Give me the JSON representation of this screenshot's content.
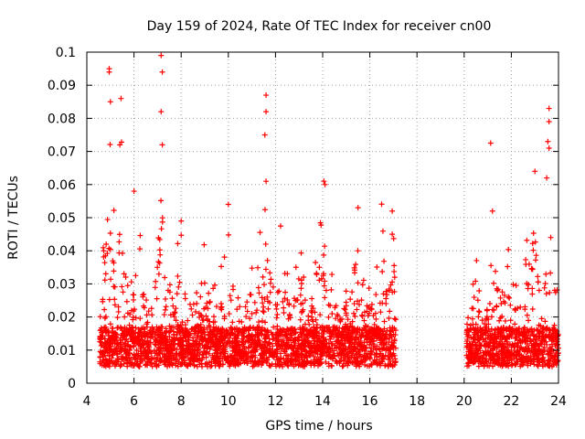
{
  "chart_data": {
    "type": "scatter",
    "title": "Day 159 of 2024, Rate Of TEC Index for receiver cn00",
    "xlabel": "GPS time / hours",
    "ylabel": "ROTI / TECUs",
    "xlim": [
      4,
      24
    ],
    "ylim": [
      0,
      0.1
    ],
    "grid": true,
    "marker": "+",
    "color": "#ff0000",
    "x_ticks": [
      4,
      6,
      8,
      10,
      12,
      14,
      16,
      18,
      20,
      22,
      24
    ],
    "x_tick_labels": [
      "4",
      "6",
      "8",
      "10",
      "12",
      "14",
      "16",
      "18",
      "20",
      "22",
      "24"
    ],
    "y_ticks": [
      0,
      0.01,
      0.02,
      0.03,
      0.04,
      0.05,
      0.06,
      0.07,
      0.08,
      0.09,
      0.1
    ],
    "y_tick_labels": [
      "0",
      "0.01",
      "0.02",
      "0.03",
      "0.04",
      "0.05",
      "0.06",
      "0.07",
      "0.08",
      "0.09",
      "0.1"
    ],
    "data_coverage": [
      {
        "from": 4.55,
        "to": 17.1
      },
      {
        "from": 20.1,
        "to": 24.0
      }
    ],
    "notable_points": [
      {
        "x": 4.95,
        "y": 0.095
      },
      {
        "x": 4.95,
        "y": 0.094
      },
      {
        "x": 5.0,
        "y": 0.085
      },
      {
        "x": 5.45,
        "y": 0.086
      },
      {
        "x": 5.4,
        "y": 0.072
      },
      {
        "x": 7.15,
        "y": 0.099
      },
      {
        "x": 7.2,
        "y": 0.094
      },
      {
        "x": 7.15,
        "y": 0.082
      },
      {
        "x": 7.2,
        "y": 0.072
      },
      {
        "x": 11.6,
        "y": 0.087
      },
      {
        "x": 11.6,
        "y": 0.082
      },
      {
        "x": 11.55,
        "y": 0.075
      },
      {
        "x": 11.6,
        "y": 0.061
      },
      {
        "x": 14.05,
        "y": 0.061
      },
      {
        "x": 14.1,
        "y": 0.06
      },
      {
        "x": 10.0,
        "y": 0.054
      },
      {
        "x": 15.5,
        "y": 0.053
      },
      {
        "x": 16.95,
        "y": 0.052
      },
      {
        "x": 16.95,
        "y": 0.045
      },
      {
        "x": 21.2,
        "y": 0.052
      },
      {
        "x": 23.6,
        "y": 0.083
      },
      {
        "x": 23.6,
        "y": 0.079
      },
      {
        "x": 23.55,
        "y": 0.073
      },
      {
        "x": 23.6,
        "y": 0.071
      },
      {
        "x": 23.0,
        "y": 0.064
      },
      {
        "x": 23.5,
        "y": 0.062
      },
      {
        "x": 8.0,
        "y": 0.049
      },
      {
        "x": 6.0,
        "y": 0.058
      }
    ]
  }
}
